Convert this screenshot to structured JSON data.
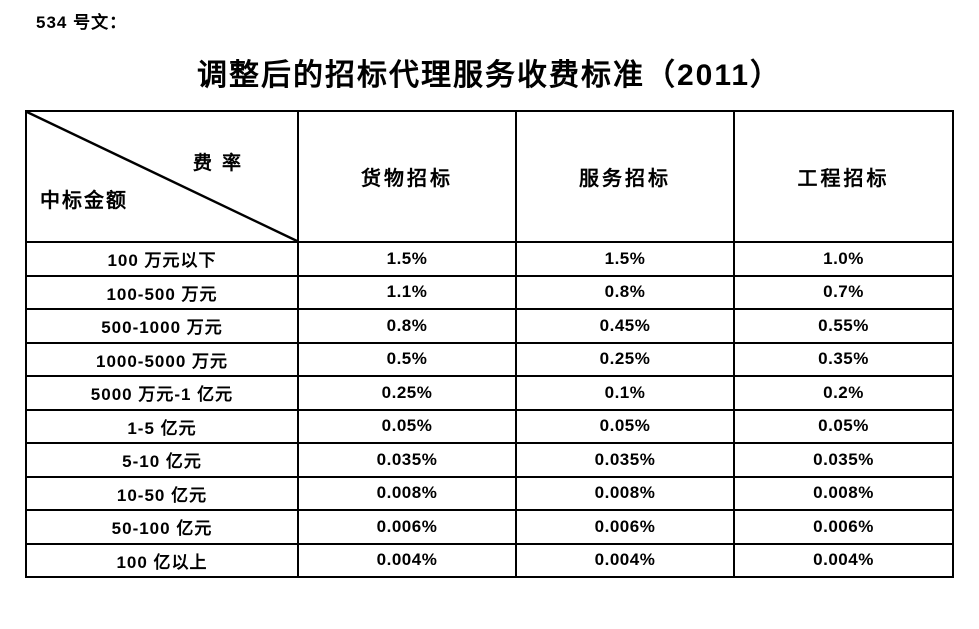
{
  "page": {
    "doc_ref": "534 号文：",
    "title": "调整后的招标代理服务收费标准（2011）"
  },
  "table": {
    "corner": {
      "top_right": "费率",
      "bottom_left": "中标金额"
    },
    "columns": [
      "货物招标",
      "服务招标",
      "工程招标"
    ],
    "rows": [
      {
        "label": "100 万元以下",
        "values": [
          "1.5%",
          "1.5%",
          "1.0%"
        ]
      },
      {
        "label": "100-500 万元",
        "values": [
          "1.1%",
          "0.8%",
          "0.7%"
        ]
      },
      {
        "label": "500-1000 万元",
        "values": [
          "0.8%",
          "0.45%",
          "0.55%"
        ]
      },
      {
        "label": "1000-5000 万元",
        "values": [
          "0.5%",
          "0.25%",
          "0.35%"
        ]
      },
      {
        "label": "5000 万元-1 亿元",
        "values": [
          "0.25%",
          "0.1%",
          "0.2%"
        ]
      },
      {
        "label": "1-5 亿元",
        "values": [
          "0.05%",
          "0.05%",
          "0.05%"
        ]
      },
      {
        "label": "5-10 亿元",
        "values": [
          "0.035%",
          "0.035%",
          "0.035%"
        ]
      },
      {
        "label": "10-50 亿元",
        "values": [
          "0.008%",
          "0.008%",
          "0.008%"
        ]
      },
      {
        "label": "50-100 亿元",
        "values": [
          "0.006%",
          "0.006%",
          "0.006%"
        ]
      },
      {
        "label": "100 亿以上",
        "values": [
          "0.004%",
          "0.004%",
          "0.004%"
        ]
      }
    ]
  },
  "colors": {
    "text": "#000000",
    "border": "#000000",
    "background": "#ffffff"
  }
}
